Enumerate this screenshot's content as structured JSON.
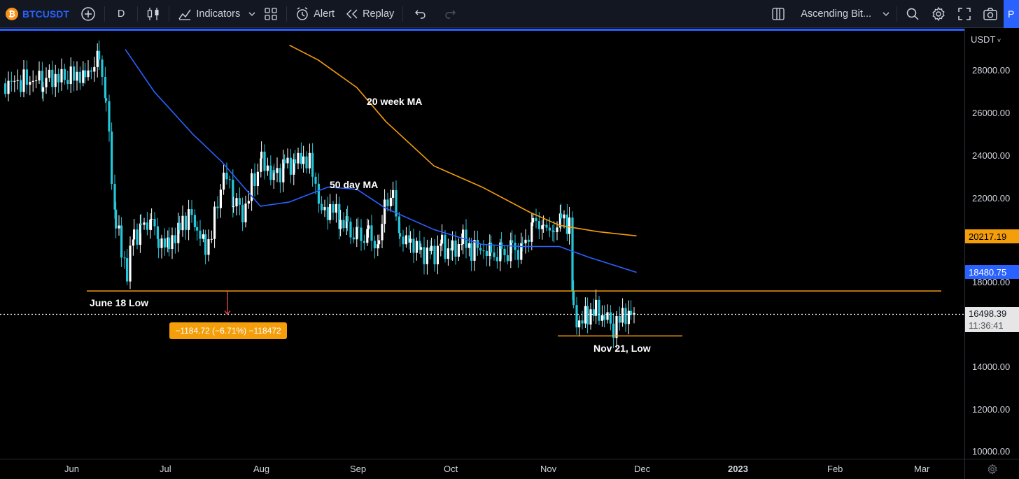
{
  "toolbar": {
    "symbol": "BTCUSDT",
    "symbol_logo": "₿",
    "interval": "D",
    "indicators_label": "Indicators",
    "alert_label": "Alert",
    "replay_label": "Replay",
    "layout_name": "Ascending Bit...",
    "publish_label": "P"
  },
  "price_axis": {
    "currency": "USDT",
    "ticks": [
      {
        "label": "28000.00",
        "value": 28000
      },
      {
        "label": "26000.00",
        "value": 26000
      },
      {
        "label": "24000.00",
        "value": 24000
      },
      {
        "label": "22000.00",
        "value": 22000
      },
      {
        "label": "18000.00",
        "value": 18000
      },
      {
        "label": "14000.00",
        "value": 14000
      },
      {
        "label": "12000.00",
        "value": 12000
      },
      {
        "label": "10000.00",
        "value": 10000
      }
    ],
    "tags": {
      "ma20w": {
        "label": "20217.19",
        "value": 20217.19,
        "color": "#f59e0b"
      },
      "ma50d": {
        "label": "18480.75",
        "value": 18480.75,
        "color": "#2962ff"
      },
      "last": {
        "label": "16498.39",
        "value": 16498.39,
        "countdown": "11:36:41"
      }
    }
  },
  "time_axis": [
    "Jun",
    "Jul",
    "Aug",
    "Sep",
    "Oct",
    "Nov",
    "Dec",
    "2023",
    "Feb",
    "Mar"
  ],
  "annotations": {
    "ma20w_label": "20 week MA",
    "ma50d_label": "50 day MA",
    "june_low_label": "June 18 Low",
    "nov_low_label": "Nov 21, Low",
    "measure": "−1184.72 (−6.71%) −118472"
  },
  "colors": {
    "up": "#ffffff",
    "down": "#26c6da",
    "ma20w": "#f59e0b",
    "ma50d": "#2962ff",
    "support": "#f59e0b"
  },
  "chart_data": {
    "type": "candlestick",
    "symbol": "BTCUSDT",
    "interval": "D",
    "ylim": [
      10000,
      29000
    ],
    "x_labels": [
      "Jun",
      "Jul",
      "Aug",
      "Sep",
      "Oct",
      "Nov",
      "Dec",
      "2023",
      "Feb",
      "Mar"
    ],
    "support_levels": [
      {
        "label": "June 18 Low",
        "value": 17600
      },
      {
        "label": "Nov 21, Low",
        "value": 15480
      }
    ],
    "series": [
      {
        "name": "20 week MA",
        "points": [
          [
            0.3,
            29200
          ],
          [
            0.33,
            28500
          ],
          [
            0.37,
            27200
          ],
          [
            0.4,
            25600
          ],
          [
            0.45,
            23500
          ],
          [
            0.5,
            22500
          ],
          [
            0.55,
            21300
          ],
          [
            0.58,
            20700
          ],
          [
            0.62,
            20400
          ],
          [
            0.66,
            20200
          ]
        ]
      },
      {
        "name": "50 day MA",
        "points": [
          [
            0.13,
            29000
          ],
          [
            0.16,
            27000
          ],
          [
            0.2,
            25000
          ],
          [
            0.23,
            23700
          ],
          [
            0.27,
            21600
          ],
          [
            0.3,
            21800
          ],
          [
            0.34,
            22500
          ],
          [
            0.37,
            22400
          ],
          [
            0.4,
            21500
          ],
          [
            0.45,
            20500
          ],
          [
            0.5,
            19800
          ],
          [
            0.54,
            19700
          ],
          [
            0.58,
            19700
          ],
          [
            0.61,
            19200
          ],
          [
            0.66,
            18480
          ]
        ]
      }
    ]
  }
}
